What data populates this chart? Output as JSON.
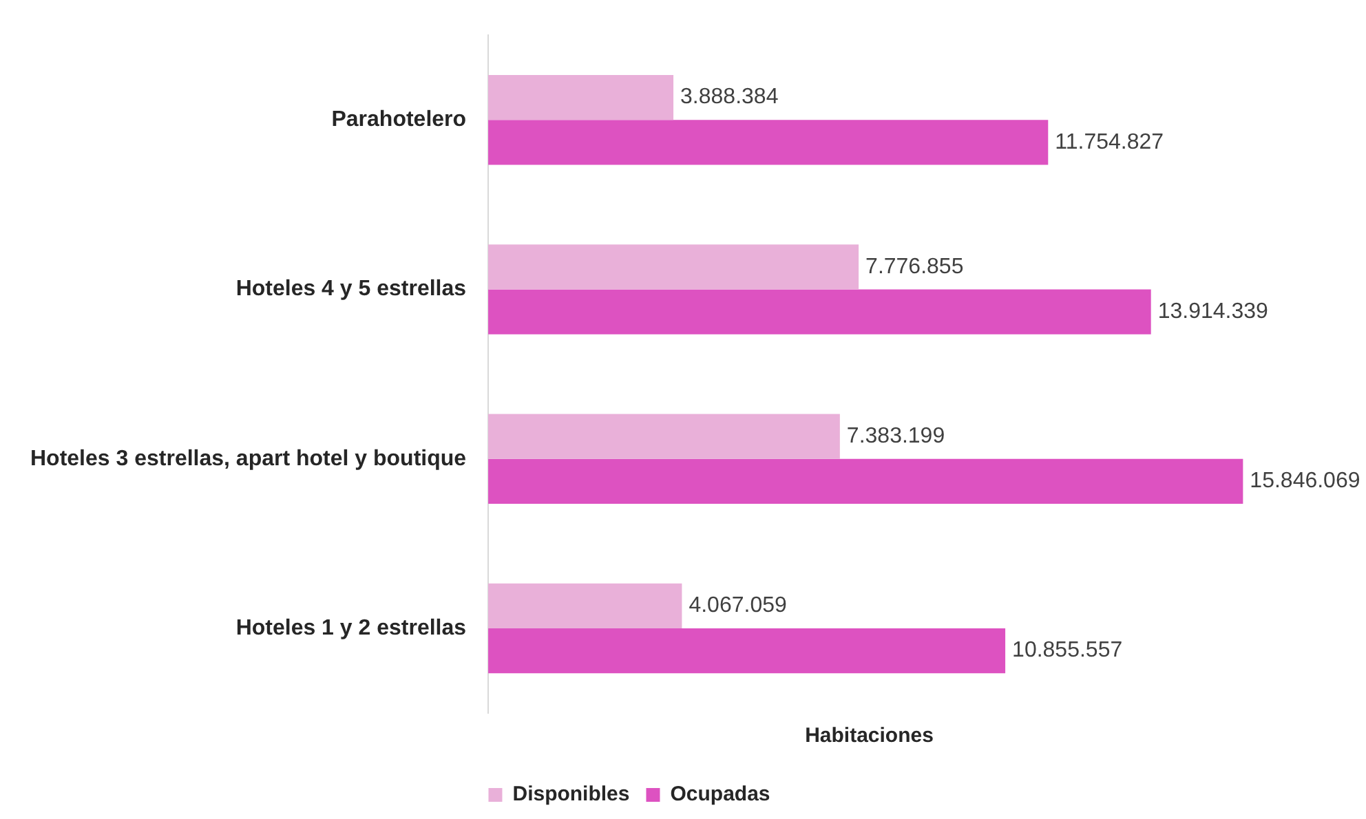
{
  "chart_data": {
    "type": "bar",
    "orientation": "horizontal",
    "xlabel": "Habitaciones",
    "legend": "bottom",
    "categories": [
      "Parahotelero",
      "Hoteles 4 y 5 estrellas",
      "Hoteles 3 estrellas, apart hotel y boutique",
      "Hoteles 1 y 2 estrellas"
    ],
    "series": [
      {
        "name": "Disponibles",
        "color": "#e9b0d9",
        "values": [
          3888384,
          7776855,
          7383199,
          4067059
        ],
        "value_labels": [
          "3.888.384",
          "7.776.855",
          "7.383.199",
          "4.067.059"
        ]
      },
      {
        "name": "Ocupadas",
        "color": "#dd52c1",
        "values": [
          11754827,
          13914339,
          15846069,
          10855557
        ],
        "value_labels": [
          "11.754.827",
          "13.914.339",
          "15.846.069",
          "10.855.557"
        ]
      }
    ]
  }
}
